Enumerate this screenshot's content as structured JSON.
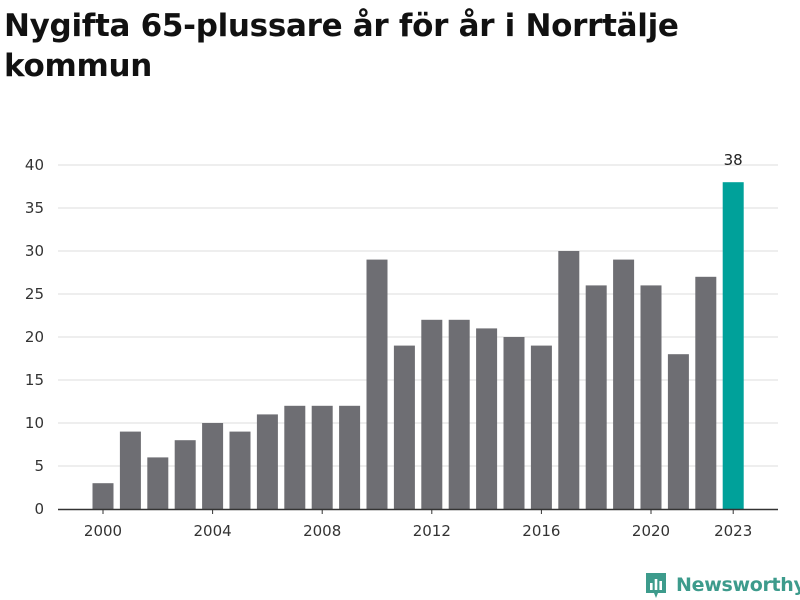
{
  "chart_data": {
    "type": "bar",
    "title": "Nygifta 65-plussare år för år i Norrtälje kommun",
    "categories": [
      "2000",
      "2001",
      "2002",
      "2003",
      "2004",
      "2005",
      "2006",
      "2007",
      "2008",
      "2009",
      "2010",
      "2011",
      "2012",
      "2013",
      "2014",
      "2015",
      "2016",
      "2017",
      "2018",
      "2019",
      "2020",
      "2021",
      "2022",
      "2023"
    ],
    "values": [
      3,
      9,
      6,
      8,
      10,
      9,
      11,
      12,
      12,
      12,
      29,
      19,
      22,
      22,
      21,
      20,
      19,
      30,
      26,
      29,
      26,
      18,
      27,
      38
    ],
    "x_tick_labels": [
      "2000",
      "2004",
      "2008",
      "2012",
      "2016",
      "2020",
      "2023"
    ],
    "y_ticks": [
      0,
      5,
      10,
      15,
      20,
      25,
      30,
      35,
      40
    ],
    "ylim": [
      0,
      40
    ],
    "grid": true,
    "highlight": {
      "category": "2023",
      "label": "38"
    },
    "colors": {
      "bar": "#6e6e73",
      "highlight": "#00a19a",
      "grid": "#dddddd",
      "axis": "#333333"
    }
  },
  "brand": {
    "name": "Newsworthy",
    "icon": "newsworthy-logo-icon",
    "color": "#3d9b8c"
  }
}
